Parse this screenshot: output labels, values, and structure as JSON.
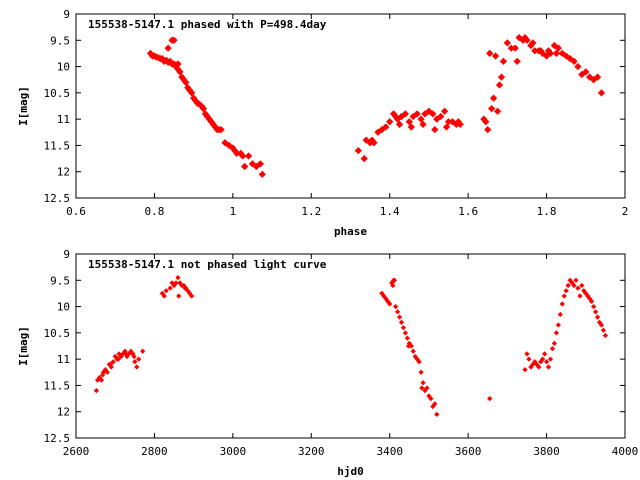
{
  "chart_data": [
    {
      "type": "scatter",
      "title": "155538-5147.1 phased with P=498.4day",
      "xlabel": "phase",
      "ylabel": "I[mag]",
      "xlim": [
        0.6,
        2.0
      ],
      "ylim": [
        9,
        12.5
      ],
      "y_inverted": true,
      "xticks": [
        0.6,
        0.8,
        1,
        1.2,
        1.4,
        1.6,
        1.8,
        2
      ],
      "xtick_labels": [
        "0.6",
        "0.8",
        "1",
        "1.2",
        "1.4",
        "1.6",
        "1.8",
        "2"
      ],
      "yticks": [
        9,
        9.5,
        10,
        10.5,
        11,
        11.5,
        12,
        12.5
      ],
      "ytick_labels": [
        "9",
        "9.5",
        "10",
        "10.5",
        "11",
        "11.5",
        "12",
        "12.5"
      ],
      "marker_color": "#ff0000",
      "series": [
        {
          "x": [
            0.79,
            0.795,
            0.8,
            0.805,
            0.81,
            0.815,
            0.82,
            0.825,
            0.83,
            0.835,
            0.84,
            0.845,
            0.85,
            0.855,
            0.86,
            0.865,
            0.87,
            0.875,
            0.88,
            0.885,
            0.89,
            0.895,
            0.9,
            0.905,
            0.91,
            0.915,
            0.92,
            0.925,
            0.93,
            0.935,
            0.94,
            0.945,
            0.95,
            0.955,
            0.96,
            0.965,
            0.97,
            0.98,
            0.99,
            1.0,
            1.005,
            1.01,
            1.02,
            1.025,
            1.03,
            1.04,
            1.05,
            1.06,
            1.07,
            1.075,
            0.835,
            0.845,
            0.85,
            0.86,
            1.32,
            1.335,
            1.34,
            1.35,
            1.355,
            1.36,
            1.37,
            1.38,
            1.39,
            1.4,
            1.41,
            1.415,
            1.42,
            1.43,
            1.44,
            1.45,
            1.46,
            1.47,
            1.48,
            1.49,
            1.5,
            1.51,
            1.52,
            1.53,
            1.54,
            1.55,
            1.56,
            1.57,
            1.58,
            1.425,
            1.455,
            1.485,
            1.515,
            1.545,
            1.575,
            1.64,
            1.645,
            1.65,
            1.655,
            1.66,
            1.665,
            1.67,
            1.675,
            1.68,
            1.685,
            1.69,
            1.7,
            1.71,
            1.72,
            1.73,
            1.74,
            1.75,
            1.76,
            1.77,
            1.78,
            1.79,
            1.8,
            1.81,
            1.82,
            1.83,
            1.84,
            1.85,
            1.86,
            1.87,
            1.88,
            1.89,
            1.9,
            1.91,
            1.92,
            1.93,
            1.94,
            1.725,
            1.745,
            1.765,
            1.785,
            1.805,
            1.825
          ],
          "y": [
            9.75,
            9.8,
            9.8,
            9.82,
            9.83,
            9.85,
            9.85,
            9.9,
            9.88,
            9.92,
            9.9,
            9.95,
            9.95,
            10.0,
            10.05,
            10.1,
            10.2,
            10.25,
            10.3,
            10.4,
            10.45,
            10.5,
            10.6,
            10.65,
            10.7,
            10.72,
            10.75,
            10.8,
            10.9,
            10.95,
            11.0,
            11.05,
            11.1,
            11.15,
            11.2,
            11.2,
            11.2,
            11.45,
            11.5,
            11.55,
            11.6,
            11.65,
            11.65,
            11.7,
            11.9,
            11.7,
            11.85,
            11.9,
            11.85,
            12.05,
            9.65,
            9.5,
            9.5,
            9.95,
            11.6,
            11.75,
            11.4,
            11.45,
            11.4,
            11.45,
            11.25,
            11.2,
            11.15,
            11.05,
            10.9,
            10.95,
            11.0,
            10.95,
            10.9,
            11.05,
            10.95,
            10.9,
            11.0,
            10.9,
            10.85,
            10.9,
            11.0,
            10.95,
            10.85,
            11.05,
            11.05,
            11.1,
            11.1,
            11.1,
            11.15,
            11.1,
            11.2,
            11.15,
            11.05,
            11.0,
            11.05,
            11.2,
            9.75,
            10.8,
            10.6,
            9.8,
            10.85,
            10.35,
            10.2,
            9.9,
            9.55,
            9.65,
            9.65,
            9.45,
            9.5,
            9.5,
            9.6,
            9.7,
            9.7,
            9.75,
            9.8,
            9.75,
            9.6,
            9.65,
            9.75,
            9.8,
            9.85,
            9.9,
            10.0,
            10.15,
            10.1,
            10.2,
            10.25,
            10.2,
            10.5,
            9.9,
            9.45,
            9.55,
            9.7,
            9.7,
            9.75
          ]
        }
      ]
    },
    {
      "type": "scatter",
      "title": "155538-5147.1 not phased light curve",
      "xlabel": "hjd0",
      "ylabel": "I[mag]",
      "xlim": [
        2600,
        4000
      ],
      "ylim": [
        9,
        12.5
      ],
      "y_inverted": true,
      "xticks": [
        2600,
        2800,
        3000,
        3200,
        3400,
        3600,
        3800,
        4000
      ],
      "xtick_labels": [
        "2600",
        "2800",
        "3000",
        "3200",
        "3400",
        "3600",
        "3800",
        "4000"
      ],
      "yticks": [
        9,
        9.5,
        10,
        10.5,
        11,
        11.5,
        12,
        12.5
      ],
      "ytick_labels": [
        "9",
        "9.5",
        "10",
        "10.5",
        "11",
        "11.5",
        "12",
        "12.5"
      ],
      "marker_color": "#ff0000",
      "series": [
        {
          "x": [
            2652,
            2655,
            2660,
            2665,
            2670,
            2675,
            2680,
            2685,
            2690,
            2695,
            2700,
            2705,
            2710,
            2715,
            2720,
            2725,
            2730,
            2735,
            2740,
            2745,
            2750,
            2755,
            2760,
            2770,
            2668,
            2688,
            2708,
            2728,
            2748,
            2820,
            2825,
            2830,
            2840,
            2845,
            2850,
            2855,
            2860,
            2865,
            2870,
            2875,
            2880,
            2885,
            2890,
            2895,
            2862,
            2878,
            3380,
            3385,
            3390,
            3395,
            3400,
            3405,
            3410,
            3415,
            3420,
            3425,
            3430,
            3435,
            3440,
            3445,
            3450,
            3455,
            3460,
            3465,
            3470,
            3475,
            3480,
            3485,
            3490,
            3495,
            3500,
            3505,
            3510,
            3515,
            3520,
            3408,
            3412,
            3448,
            3482,
            3655,
            3745,
            3750,
            3755,
            3760,
            3765,
            3770,
            3775,
            3780,
            3785,
            3790,
            3795,
            3800,
            3805,
            3810,
            3815,
            3820,
            3825,
            3830,
            3835,
            3840,
            3845,
            3850,
            3855,
            3860,
            3865,
            3870,
            3875,
            3880,
            3885,
            3890,
            3895,
            3900,
            3905,
            3910,
            3915,
            3920,
            3925,
            3930,
            3935,
            3940,
            3945,
            3950
          ],
          "y": [
            11.6,
            11.4,
            11.35,
            11.4,
            11.25,
            11.2,
            11.25,
            11.1,
            11.15,
            11.05,
            10.95,
            11.0,
            10.9,
            10.95,
            10.9,
            10.85,
            10.95,
            10.9,
            10.85,
            10.9,
            11.05,
            11.15,
            11.0,
            10.85,
            11.3,
            11.1,
            11.0,
            10.9,
            10.95,
            9.75,
            9.8,
            9.7,
            9.65,
            9.55,
            9.6,
            9.55,
            9.45,
            9.55,
            9.6,
            9.6,
            9.65,
            9.7,
            9.75,
            9.8,
            9.8,
            9.65,
            9.75,
            9.8,
            9.85,
            9.9,
            9.95,
            9.55,
            9.5,
            10.0,
            10.1,
            10.2,
            10.3,
            10.4,
            10.5,
            10.6,
            10.7,
            10.75,
            10.85,
            10.95,
            11.0,
            11.05,
            11.25,
            11.45,
            11.6,
            11.55,
            11.7,
            11.75,
            11.9,
            11.85,
            12.05,
            9.6,
            9.5,
            10.75,
            11.55,
            11.75,
            11.2,
            10.9,
            11.0,
            11.15,
            11.1,
            11.05,
            11.1,
            11.15,
            11.05,
            11.0,
            10.9,
            11.05,
            11.15,
            11.0,
            10.8,
            10.7,
            10.5,
            10.35,
            10.15,
            9.95,
            9.8,
            9.7,
            9.6,
            9.5,
            9.55,
            9.6,
            9.5,
            9.65,
            9.8,
            9.6,
            9.7,
            9.75,
            9.8,
            9.85,
            9.9,
            10.0,
            10.1,
            10.2,
            10.3,
            10.35,
            10.45,
            10.55
          ]
        }
      ]
    }
  ]
}
